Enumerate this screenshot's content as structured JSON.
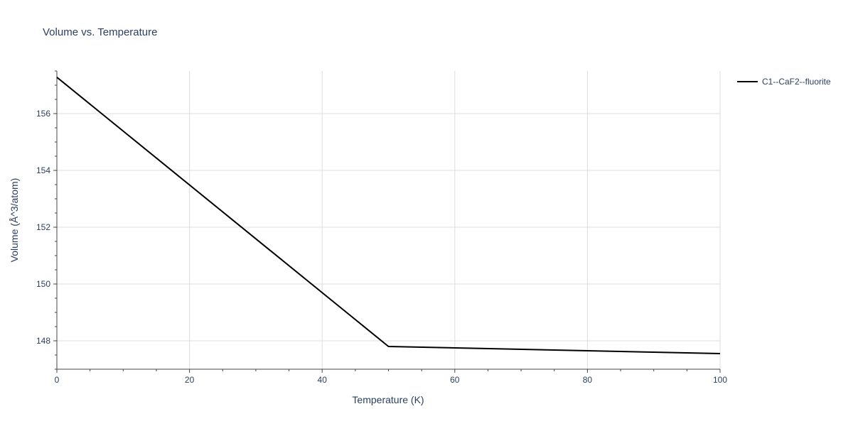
{
  "chart_data": {
    "type": "line",
    "title": "Volume vs. Temperature",
    "xlabel": "Temperature (K)",
    "ylabel": "Volume (Å^3/atom)",
    "xlim": [
      0,
      100
    ],
    "ylim": [
      147,
      157.5
    ],
    "x_ticks": [
      0,
      20,
      40,
      60,
      80,
      100
    ],
    "y_ticks": [
      148,
      150,
      152,
      154,
      156
    ],
    "grid": true,
    "legend_position": "top-right",
    "series": [
      {
        "name": "C1--CaF2--fluorite",
        "color": "#000000",
        "x": [
          0,
          50,
          100
        ],
        "y": [
          157.28,
          147.8,
          147.55
        ]
      }
    ]
  }
}
